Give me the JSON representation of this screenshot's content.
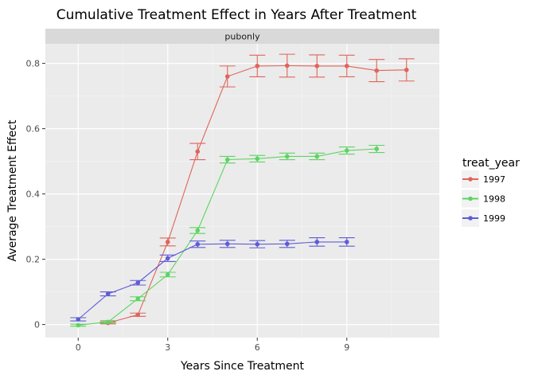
{
  "chart_data": {
    "type": "line",
    "title": "Cumulative Treatment Effect in Years After Treatment",
    "facet_label": "pubonly",
    "xlabel": "Years Since Treatment",
    "ylabel": "Average Treatment Effect",
    "xlim": [
      -1.1,
      12.1
    ],
    "ylim": [
      -0.04,
      0.86
    ],
    "x_ticks": [
      0,
      3,
      6,
      9
    ],
    "y_ticks": [
      0,
      0.2,
      0.4,
      0.6,
      0.8
    ],
    "y_tick_labels": [
      "0",
      "0.2",
      "0.4",
      "0.6",
      "0.8"
    ],
    "x_tick_labels": [
      "0",
      "3",
      "6",
      "9"
    ],
    "grid": true,
    "error_bars": true,
    "legend_title": "treat_year",
    "legend_position": "right",
    "series": [
      {
        "name": "1997",
        "color": "#e0645a",
        "x": [
          1,
          2,
          3,
          4,
          5,
          6,
          7,
          8,
          9,
          10,
          11
        ],
        "y": [
          0.005,
          0.03,
          0.253,
          0.53,
          0.76,
          0.792,
          0.793,
          0.792,
          0.792,
          0.778,
          0.78
        ],
        "err": [
          0.003,
          0.005,
          0.012,
          0.025,
          0.032,
          0.033,
          0.035,
          0.034,
          0.033,
          0.034,
          0.034
        ]
      },
      {
        "name": "1998",
        "color": "#5dd462",
        "x": [
          0,
          1,
          2,
          3,
          4,
          5,
          6,
          7,
          8,
          9,
          10
        ],
        "y": [
          -0.002,
          0.008,
          0.079,
          0.153,
          0.288,
          0.505,
          0.508,
          0.515,
          0.515,
          0.533,
          0.538
        ],
        "err": [
          0.003,
          0.004,
          0.006,
          0.007,
          0.009,
          0.01,
          0.01,
          0.01,
          0.01,
          0.011,
          0.011
        ]
      },
      {
        "name": "1999",
        "color": "#5f5cd6",
        "x": [
          0,
          1,
          2,
          3,
          4,
          5,
          6,
          7,
          8,
          9
        ],
        "y": [
          0.016,
          0.094,
          0.128,
          0.203,
          0.246,
          0.247,
          0.246,
          0.247,
          0.253,
          0.253
        ],
        "err": [
          0.005,
          0.006,
          0.007,
          0.01,
          0.01,
          0.011,
          0.011,
          0.011,
          0.013,
          0.013
        ]
      }
    ]
  }
}
